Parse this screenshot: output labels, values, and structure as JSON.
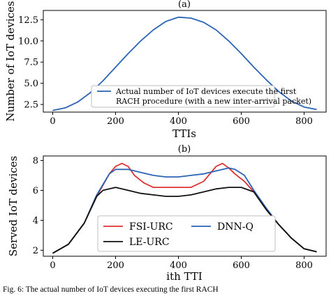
{
  "caption": "Fig. 6: The actual number of IoT devices executing the first RACH",
  "colors": {
    "blue": "#2a63b6",
    "red": "#e03030",
    "black": "#111111"
  },
  "chart_data": [
    {
      "type": "line",
      "panel_label": "(a)",
      "title": "",
      "xlabel": "TTIs",
      "ylabel": "Number of IoT devices",
      "xlim": [
        -30,
        870
      ],
      "ylim": [
        1.6,
        13.6
      ],
      "xticks": [
        0,
        200,
        400,
        600,
        800
      ],
      "yticks": [
        2.5,
        5.0,
        7.5,
        10.0,
        12.5
      ],
      "xtick_labels": [
        "0",
        "200",
        "400",
        "600",
        "800"
      ],
      "ytick_labels": [
        "2.5",
        "5.0",
        "7.5",
        "10.0",
        "12.5"
      ],
      "grid": false,
      "legend_position": "lower-center",
      "series": [
        {
          "name": "Actual number of IoT devices execute the first RACH procedure (with a new inter-arrival packet)",
          "color": "#2a63b6",
          "x": [
            0,
            40,
            80,
            120,
            160,
            200,
            240,
            280,
            320,
            360,
            400,
            440,
            480,
            520,
            560,
            600,
            640,
            680,
            720,
            760,
            800,
            840
          ],
          "y": [
            1.8,
            2.1,
            2.8,
            3.9,
            5.3,
            6.9,
            8.5,
            10.0,
            11.3,
            12.3,
            12.8,
            12.7,
            12.2,
            11.3,
            10.0,
            8.5,
            6.9,
            5.4,
            4.0,
            2.9,
            2.2,
            1.9
          ]
        }
      ]
    },
    {
      "type": "line",
      "panel_label": "(b)",
      "title": "",
      "xlabel": "ith TTI",
      "ylabel": "Served IoT devices",
      "xlim": [
        -30,
        870
      ],
      "ylim": [
        1.6,
        8.3
      ],
      "xticks": [
        0,
        200,
        400,
        600,
        800
      ],
      "yticks": [
        2,
        4,
        6,
        8
      ],
      "xtick_labels": [
        "0",
        "200",
        "400",
        "600",
        "800"
      ],
      "ytick_labels": [
        "2",
        "4",
        "6",
        "8"
      ],
      "grid": false,
      "legend_position": "lower-center",
      "legend_columns": 2,
      "series": [
        {
          "name": "FSI-URC",
          "color": "#e03030",
          "x": [
            0,
            50,
            100,
            140,
            180,
            200,
            220,
            240,
            260,
            290,
            320,
            360,
            400,
            440,
            480,
            500,
            520,
            540,
            560,
            580,
            610,
            640,
            680,
            720,
            760,
            800,
            840
          ],
          "y": [
            1.8,
            2.4,
            3.8,
            5.6,
            7.1,
            7.6,
            7.8,
            7.6,
            7.0,
            6.5,
            6.2,
            6.2,
            6.2,
            6.2,
            6.6,
            7.1,
            7.6,
            7.8,
            7.5,
            7.1,
            6.6,
            5.9,
            4.7,
            3.7,
            2.8,
            2.1,
            1.9
          ]
        },
        {
          "name": "DNN-Q",
          "color": "#2a63b6",
          "x": [
            0,
            50,
            100,
            140,
            180,
            200,
            240,
            280,
            320,
            360,
            400,
            440,
            480,
            520,
            560,
            580,
            610,
            640,
            680,
            720,
            760,
            800,
            840
          ],
          "y": [
            1.8,
            2.4,
            3.8,
            5.7,
            7.1,
            7.4,
            7.4,
            7.2,
            7.0,
            6.9,
            6.9,
            7.0,
            7.1,
            7.3,
            7.5,
            7.4,
            7.0,
            6.0,
            4.8,
            3.7,
            2.8,
            2.1,
            1.9
          ]
        },
        {
          "name": "LE-URC",
          "color": "#111111",
          "x": [
            0,
            50,
            100,
            140,
            160,
            180,
            200,
            240,
            280,
            320,
            360,
            400,
            440,
            480,
            520,
            560,
            600,
            640,
            680,
            720,
            760,
            800,
            840
          ],
          "y": [
            1.8,
            2.4,
            3.8,
            5.6,
            6.0,
            6.1,
            6.2,
            6.0,
            5.8,
            5.7,
            5.6,
            5.6,
            5.7,
            5.9,
            6.1,
            6.2,
            6.2,
            5.9,
            4.7,
            3.7,
            2.8,
            2.1,
            1.9
          ]
        }
      ]
    }
  ]
}
